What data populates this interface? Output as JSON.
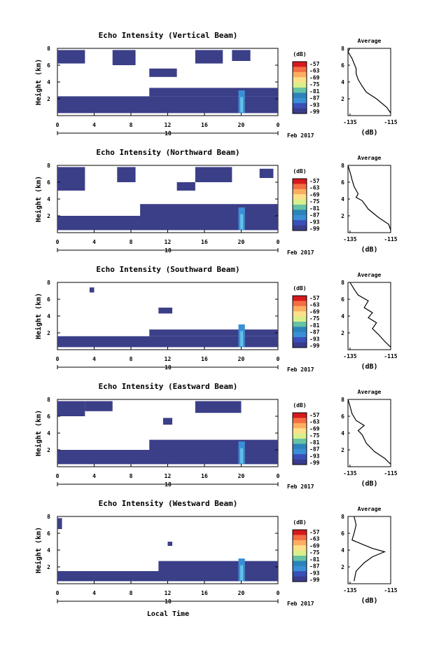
{
  "colorbar_unit": "(dB)",
  "colorbar_ticks": [
    "-57",
    "-63",
    "-69",
    "-75",
    "-81",
    "-87",
    "-93",
    "-99"
  ],
  "colorbar_colors": [
    "#d7191c",
    "#f46d43",
    "#fdae61",
    "#fee08b",
    "#d9ef8b",
    "#66c2a5",
    "#2b83ba",
    "#3a8fd6",
    "#3b4fb8",
    "#3a3d8c"
  ],
  "echo_fill_color": "#3b3f88",
  "shared": {
    "xlabel": "Local Time",
    "x_ticks": [
      "0",
      "4",
      "8",
      "12",
      "16",
      "20",
      "0"
    ],
    "date_day": "18",
    "date_month": "Feb 2017",
    "ylabel": "Height (km)",
    "y_ticks": [
      "2",
      "4",
      "6",
      "8"
    ],
    "avg_title": "Average",
    "avg_xlabel": "(dB)",
    "avg_x_ticks": [
      "-135",
      "-115"
    ],
    "avg_y_ticks": [
      "2",
      "4",
      "6",
      "8"
    ]
  },
  "chart_data": [
    {
      "type": "heatmap",
      "title": "Echo Intensity (Vertical Beam)",
      "xlabel": "Local Time",
      "ylabel": "Height (km)",
      "xlim": [
        0,
        24
      ],
      "ylim": [
        0,
        8
      ],
      "echo": [
        {
          "t0": 0,
          "t1": 24,
          "h0": 0.3,
          "h1": 2.3
        },
        {
          "t0": 10,
          "t1": 24,
          "h0": 2.3,
          "h1": 3.3
        },
        {
          "t0": 0,
          "t1": 3,
          "h0": 6.2,
          "h1": 7.8
        },
        {
          "t0": 6,
          "t1": 8.5,
          "h0": 6.0,
          "h1": 7.8
        },
        {
          "t0": 10,
          "t1": 13,
          "h0": 4.6,
          "h1": 5.6
        },
        {
          "t0": 15,
          "t1": 18,
          "h0": 6.2,
          "h1": 7.8
        },
        {
          "t0": 19,
          "t1": 21,
          "h0": 6.5,
          "h1": 7.8
        }
      ],
      "average_profile": {
        "x_db": [
          -115,
          -117,
          -122,
          -127,
          -129,
          -131,
          -132,
          -132,
          -133,
          -134,
          -135,
          -136,
          -135
        ],
        "height_km": [
          0.3,
          1.0,
          2.0,
          2.8,
          3.5,
          4.3,
          5.0,
          5.6,
          6.2,
          6.8,
          7.2,
          7.6,
          8.0
        ]
      }
    },
    {
      "type": "heatmap",
      "title": "Echo Intensity (Northward Beam)",
      "xlabel": "Local Time",
      "ylabel": "Height (km)",
      "xlim": [
        0,
        24
      ],
      "ylim": [
        0,
        8
      ],
      "echo": [
        {
          "t0": 0,
          "t1": 24,
          "h0": 0.3,
          "h1": 2.0
        },
        {
          "t0": 9,
          "t1": 24,
          "h0": 2.0,
          "h1": 3.4
        },
        {
          "t0": 0,
          "t1": 3,
          "h0": 5.0,
          "h1": 7.8
        },
        {
          "t0": 6.5,
          "t1": 8.5,
          "h0": 6.0,
          "h1": 7.8
        },
        {
          "t0": 13,
          "t1": 15,
          "h0": 5.0,
          "h1": 6.0
        },
        {
          "t0": 15,
          "t1": 19,
          "h0": 6.0,
          "h1": 7.8
        },
        {
          "t0": 22,
          "t1": 23.5,
          "h0": 6.5,
          "h1": 7.6
        }
      ],
      "average_profile": {
        "x_db": [
          -115,
          -116,
          -121,
          -126,
          -129,
          -132,
          -131,
          -133,
          -134,
          -135,
          -136
        ],
        "height_km": [
          0.3,
          1.0,
          1.8,
          2.8,
          3.8,
          4.2,
          4.6,
          5.5,
          6.3,
          7.2,
          8.0
        ]
      }
    },
    {
      "type": "heatmap",
      "title": "Echo Intensity (Southward Beam)",
      "xlabel": "Local Time",
      "ylabel": "Height (km)",
      "xlim": [
        0,
        24
      ],
      "ylim": [
        0,
        8
      ],
      "echo": [
        {
          "t0": 0,
          "t1": 24,
          "h0": 0.3,
          "h1": 1.6
        },
        {
          "t0": 10,
          "t1": 24,
          "h0": 1.6,
          "h1": 2.4
        },
        {
          "t0": 11,
          "t1": 12.5,
          "h0": 4.3,
          "h1": 5.0
        },
        {
          "t0": 3.5,
          "t1": 4,
          "h0": 6.8,
          "h1": 7.4
        }
      ],
      "average_profile": {
        "x_db": [
          -115,
          -118,
          -121,
          -124,
          -122,
          -126,
          -124,
          -128,
          -126,
          -131,
          -133,
          -135
        ],
        "height_km": [
          0.3,
          1.0,
          1.8,
          2.5,
          3.2,
          3.8,
          4.4,
          5.0,
          5.8,
          6.5,
          7.2,
          8.0
        ]
      }
    },
    {
      "type": "heatmap",
      "title": "Echo Intensity (Eastward Beam)",
      "xlabel": "Local Time",
      "ylabel": "Height (km)",
      "xlim": [
        0,
        24
      ],
      "ylim": [
        0,
        8
      ],
      "echo": [
        {
          "t0": 0,
          "t1": 24,
          "h0": 0.3,
          "h1": 2.0
        },
        {
          "t0": 10,
          "t1": 24,
          "h0": 2.0,
          "h1": 3.2
        },
        {
          "t0": 0,
          "t1": 3,
          "h0": 6.0,
          "h1": 7.8
        },
        {
          "t0": 3,
          "t1": 6,
          "h0": 6.6,
          "h1": 7.8
        },
        {
          "t0": 11.5,
          "t1": 12.5,
          "h0": 5.0,
          "h1": 5.8
        },
        {
          "t0": 15,
          "t1": 20,
          "h0": 6.4,
          "h1": 7.8
        }
      ],
      "average_profile": {
        "x_db": [
          -115,
          -118,
          -123,
          -127,
          -129,
          -131,
          -128,
          -132,
          -134,
          -135,
          -136
        ],
        "height_km": [
          0.3,
          1.0,
          1.8,
          2.8,
          3.8,
          4.3,
          4.9,
          5.5,
          6.3,
          7.2,
          8.0
        ]
      }
    },
    {
      "type": "heatmap",
      "title": "Echo Intensity (Westward Beam)",
      "xlabel": "Local Time",
      "ylabel": "Height (km)",
      "xlim": [
        0,
        24
      ],
      "ylim": [
        0,
        8
      ],
      "echo": [
        {
          "t0": 0,
          "t1": 24,
          "h0": 0.3,
          "h1": 1.5
        },
        {
          "t0": 11,
          "t1": 24,
          "h0": 1.5,
          "h1": 2.7
        },
        {
          "t0": 0,
          "t1": 0.5,
          "h0": 6.5,
          "h1": 7.8
        },
        {
          "t0": 12,
          "t1": 12.5,
          "h0": 4.5,
          "h1": 5.0
        }
      ],
      "average_profile": {
        "x_db": [
          -133,
          -132,
          -128,
          -124,
          -118,
          -124,
          -128,
          -134,
          -133,
          -132,
          -133
        ],
        "height_km": [
          0.3,
          1.5,
          2.5,
          3.2,
          3.8,
          4.2,
          4.6,
          5.2,
          6.0,
          7.0,
          8.0
        ]
      }
    }
  ]
}
